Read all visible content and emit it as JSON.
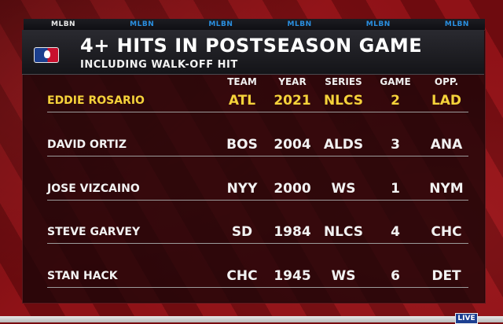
{
  "network": {
    "labels": [
      "MLBN",
      "MLBN",
      "MLBN",
      "MLBN",
      "MLBN",
      "MLBN"
    ]
  },
  "header": {
    "title": "4+ HITS IN POSTSEASON GAME",
    "subtitle": "INCLUDING WALK-OFF HIT"
  },
  "columns": {
    "team": "TEAM",
    "year": "YEAR",
    "series": "SERIES",
    "game": "GAME",
    "opp": "OPP."
  },
  "rows": [
    {
      "name": "EDDIE ROSARIO",
      "team": "ATL",
      "year": "2021",
      "series": "NLCS",
      "game": "2",
      "opp": "LAD"
    },
    {
      "name": "DAVID ORTIZ",
      "team": "BOS",
      "year": "2004",
      "series": "ALDS",
      "game": "3",
      "opp": "ANA"
    },
    {
      "name": "JOSE VIZCAINO",
      "team": "NYY",
      "year": "2000",
      "series": "WS",
      "game": "1",
      "opp": "NYM"
    },
    {
      "name": "STEVE GARVEY",
      "team": "SD",
      "year": "1984",
      "series": "NLCS",
      "game": "4",
      "opp": "CHC"
    },
    {
      "name": "STAN HACK",
      "team": "CHC",
      "year": "1945",
      "series": "WS",
      "game": "6",
      "opp": "DET"
    }
  ],
  "ticker": {
    "live_label": "LIVE"
  },
  "colors": {
    "highlight": "#f5d23a",
    "text": "#f2f2f2",
    "background": "#7a0c10"
  }
}
